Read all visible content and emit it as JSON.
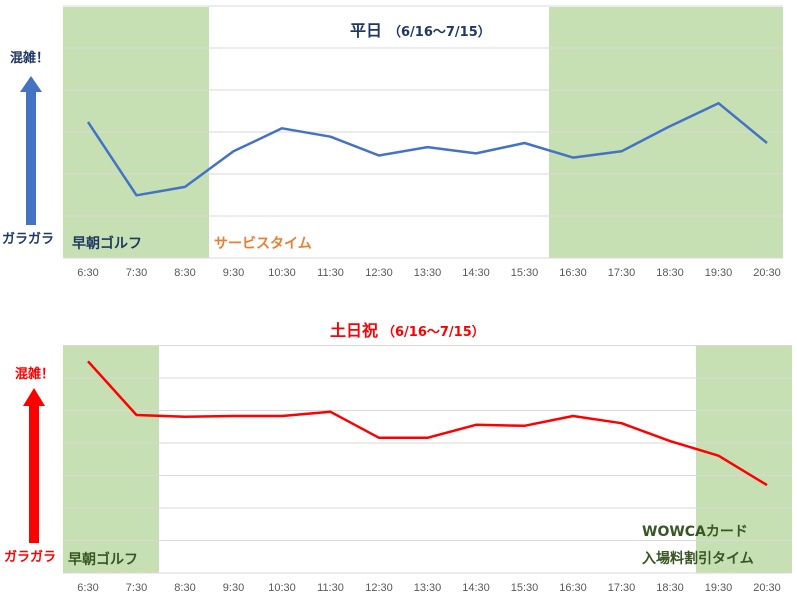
{
  "chart_data": [
    {
      "type": "line",
      "title": "平日",
      "subtitle": "（6/16〜7/15）",
      "categories": [
        "6:30",
        "7:30",
        "8:30",
        "9:30",
        "10:30",
        "11:30",
        "12:30",
        "13:30",
        "14:30",
        "15:30",
        "16:30",
        "17:30",
        "18:30",
        "19:30",
        "20:30"
      ],
      "series": [
        {
          "values": [
            3.25,
            1.5,
            1.7,
            2.55,
            3.1,
            2.9,
            2.45,
            2.65,
            2.5,
            2.75,
            2.4,
            2.55,
            3.15,
            3.7,
            2.75
          ]
        }
      ],
      "ylim": [
        0,
        6
      ],
      "grid": true,
      "line_color": "#4472c4",
      "title_color": "#1f3864",
      "y_top_label": "混雑！",
      "y_bottom_label": "ガラガラ",
      "y_arrow_color": "#4472c4",
      "y_label_color": "#1f3864",
      "bands": [
        {
          "from": "6:30",
          "to": "8:30",
          "label": "早朝ゴルフ",
          "label_color": "#1f3864",
          "color": "#c6e0b4"
        },
        {
          "from": "16:30",
          "to": "20:30",
          "label": "",
          "color": "#c6e0b4"
        }
      ],
      "annotations": [
        {
          "text": "サービスタイム",
          "color": "#ed7d31"
        }
      ]
    },
    {
      "type": "line",
      "title": "土日祝",
      "subtitle": "（6/16〜7/15）",
      "categories": [
        "6:30",
        "7:30",
        "8:30",
        "9:30",
        "10:30",
        "11:30",
        "12:30",
        "13:30",
        "14:30",
        "15:30",
        "16:30",
        "17:30",
        "18:30",
        "19:30",
        "20:30"
      ],
      "series": [
        {
          "values": [
            6.5,
            4.85,
            4.8,
            4.82,
            4.82,
            4.95,
            4.15,
            4.15,
            4.55,
            4.52,
            4.82,
            4.6,
            4.05,
            3.6,
            2.7
          ]
        }
      ],
      "ylim": [
        0,
        7
      ],
      "grid": true,
      "line_color": "#ff0000",
      "title_color": "#ff0000",
      "y_top_label": "混雑！",
      "y_bottom_label": "ガラガラ",
      "y_arrow_color": "#ff0000",
      "y_label_color": "#ff0000",
      "bands": [
        {
          "from": "6:30",
          "to": "7:30",
          "label": "早朝ゴルフ",
          "label_color": "#375623",
          "color": "#c6e0b4"
        },
        {
          "from": "19:30",
          "to": "20:30",
          "label": "WOWCAカード\n入場料割引タイム",
          "label_color": "#375623",
          "color": "#c6e0b4"
        }
      ],
      "annotations": []
    }
  ]
}
